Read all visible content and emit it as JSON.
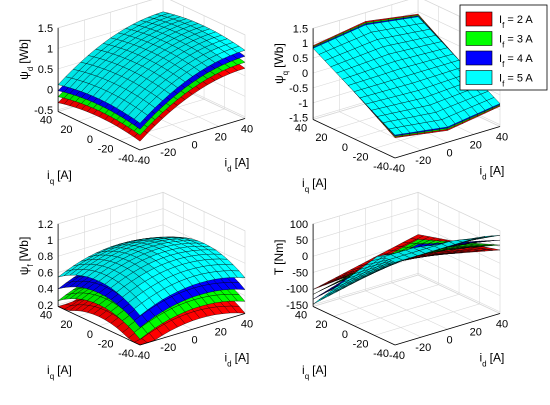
{
  "chart_data": [
    {
      "type": "surface3d",
      "zlabel": {
        "sym": "ψ",
        "sub": "d",
        "unit": "[Wb]"
      },
      "ylabel": {
        "sym": "i",
        "sub": "q",
        "unit": "[A]"
      },
      "xlabel": {
        "sym": "i",
        "sub": "d",
        "unit": "[A]"
      },
      "xticks": [
        "-40",
        "-20",
        "0",
        "20",
        "40"
      ],
      "yticks": [
        "40",
        "20",
        "0",
        "-20",
        "-40"
      ],
      "zticks": [
        "1.5",
        "1",
        "0.5",
        "0",
        "-0.5"
      ],
      "zlim": [
        -0.6,
        1.5
      ],
      "x_range": [
        -40,
        40
      ],
      "y_range": [
        -40,
        40
      ],
      "series": [
        {
          "if": 2,
          "base": -0.25,
          "slope": 0.026
        },
        {
          "if": 3,
          "base": -0.1,
          "slope": 0.026
        },
        {
          "if": 4,
          "base": 0.05,
          "slope": 0.026
        },
        {
          "if": 5,
          "base": 0.2,
          "slope": 0.026
        }
      ]
    },
    {
      "type": "surface3d",
      "zlabel": {
        "sym": "ψ",
        "sub": "q",
        "unit": "[Wb]"
      },
      "ylabel": {
        "sym": "i",
        "sub": "q",
        "unit": "[A]"
      },
      "xlabel": {
        "sym": "i",
        "sub": "d",
        "unit": "[A]"
      },
      "xticks": [
        "-40",
        "-20",
        "0",
        "20",
        "40"
      ],
      "yticks": [
        "40",
        "20",
        "0",
        "-20",
        "-40"
      ],
      "zticks": [
        "1.5",
        "1",
        "0.5",
        "0",
        "-0.5",
        "-1",
        "-1.5"
      ],
      "zlim": [
        -1.6,
        1.5
      ],
      "x_range": [
        -40,
        40
      ],
      "y_range": [
        -40,
        40
      ],
      "series": [
        {
          "if": 2,
          "scale": 0.03
        },
        {
          "if": 3,
          "scale": 0.029
        },
        {
          "if": 4,
          "scale": 0.028
        },
        {
          "if": 5,
          "scale": 0.027
        }
      ]
    },
    {
      "type": "surface3d",
      "zlabel": {
        "sym": "ψ",
        "sub": "f",
        "unit": "[Wb]"
      },
      "ylabel": {
        "sym": "i",
        "sub": "q",
        "unit": "[A]"
      },
      "xlabel": {
        "sym": "i",
        "sub": "d",
        "unit": "[A]"
      },
      "xticks": [
        "-40",
        "-20",
        "0",
        "20",
        "40"
      ],
      "yticks": [
        "40",
        "20",
        "0",
        "-20",
        "-40"
      ],
      "zticks": [
        "1.2",
        "1",
        "0.8",
        "0.6",
        "0.4",
        "0.2"
      ],
      "zlim": [
        0.15,
        1.2
      ],
      "x_range": [
        -40,
        40
      ],
      "y_range": [
        -40,
        40
      ],
      "series": [
        {
          "if": 2,
          "base": 0.45
        },
        {
          "if": 3,
          "base": 0.6
        },
        {
          "if": 4,
          "base": 0.75
        },
        {
          "if": 5,
          "base": 0.9
        }
      ]
    },
    {
      "type": "surface3d",
      "zlabel": {
        "sym": "T",
        "sub": "",
        "unit": "[Nm]"
      },
      "ylabel": {
        "sym": "i",
        "sub": "q",
        "unit": "[A]"
      },
      "xlabel": {
        "sym": "i",
        "sub": "d",
        "unit": "[A]"
      },
      "xticks": [
        "-40",
        "-20",
        "0",
        "20",
        "40"
      ],
      "yticks": [
        "40",
        "20",
        "0",
        "-20",
        "-40"
      ],
      "zticks": [
        "100",
        "50",
        "0",
        "-50",
        "-100",
        "-150"
      ],
      "zlim": [
        -170,
        100
      ],
      "x_range": [
        -40,
        40
      ],
      "y_range": [
        -40,
        40
      ],
      "series": [
        {
          "if": 2,
          "k": 1.9
        },
        {
          "if": 3,
          "k": 2.3
        },
        {
          "if": 4,
          "k": 2.7
        },
        {
          "if": 5,
          "k": 3.1
        }
      ]
    }
  ],
  "legend": {
    "placement": "top-right",
    "entries": [
      {
        "sym": "I",
        "sub": "f",
        "value": " = 2 A",
        "color": "#ff0000"
      },
      {
        "sym": "I",
        "sub": "f",
        "value": " = 3 A",
        "color": "#00ff00"
      },
      {
        "sym": "I",
        "sub": "f",
        "value": " = 4 A",
        "color": "#0000ff"
      },
      {
        "sym": "I",
        "sub": "f",
        "value": " = 5 A",
        "color": "#00ffff"
      }
    ]
  },
  "colors": {
    "if2": "#ff0000",
    "if3": "#00ff00",
    "if4": "#0000ff",
    "if5": "#00ffff",
    "mesh": "#000000",
    "grid": "#d9d9d9"
  }
}
